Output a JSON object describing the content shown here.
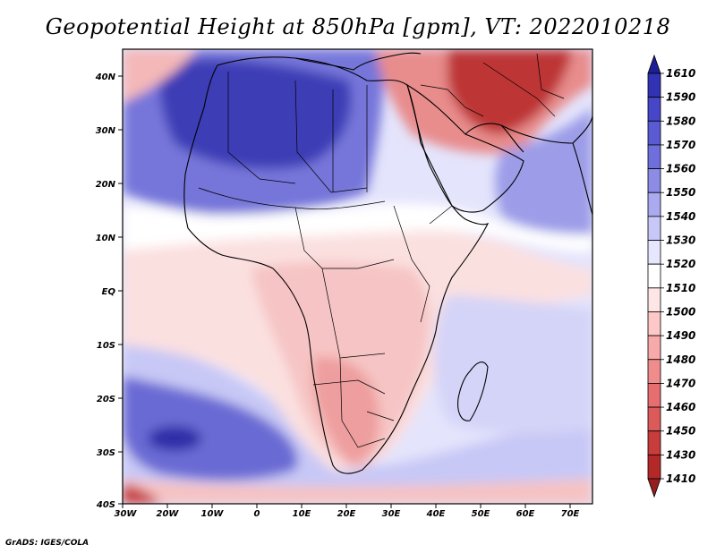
{
  "title": "Geopotential Height at 850hPa [gpm], VT: 2022010218",
  "footer": "GrADS: IGES/COLA",
  "axes": {
    "x_ticks": [
      "30W",
      "20W",
      "10W",
      "0",
      "10E",
      "20E",
      "30E",
      "40E",
      "50E",
      "60E",
      "70E"
    ],
    "y_ticks": [
      "40N",
      "30N",
      "20N",
      "10N",
      "EQ",
      "10S",
      "20S",
      "30S",
      "40S"
    ]
  },
  "colorbar": {
    "labels": [
      "1610",
      "1590",
      "1580",
      "1570",
      "1560",
      "1550",
      "1540",
      "1530",
      "1520",
      "1510",
      "1500",
      "1490",
      "1480",
      "1470",
      "1460",
      "1450",
      "1430",
      "1410"
    ],
    "colors": [
      "#1e1e96",
      "#3232b4",
      "#4646c8",
      "#5a5ad2",
      "#6e6edc",
      "#8c8ce6",
      "#aaaaf0",
      "#c8c8f8",
      "#e6e6ff",
      "#ffffff",
      "#ffe6e6",
      "#ffc8c8",
      "#f8aaaa",
      "#f08c8c",
      "#e66e6e",
      "#dc5a5a",
      "#c83c3c",
      "#b42828",
      "#961e1e"
    ]
  },
  "map": {
    "region": "Africa and Arabian Peninsula, 30W-75E, 40S-45N",
    "field_colors": {
      "deep_high": "#3a3ab8",
      "high": "#7070d8",
      "mid_high": "#b4b4f0",
      "light_high": "#dcdcfa",
      "neutral": "#ffffff",
      "light_low": "#fde0e0",
      "mid_low": "#f6b8b8",
      "low": "#e07070",
      "deep_low": "#b83030"
    }
  }
}
